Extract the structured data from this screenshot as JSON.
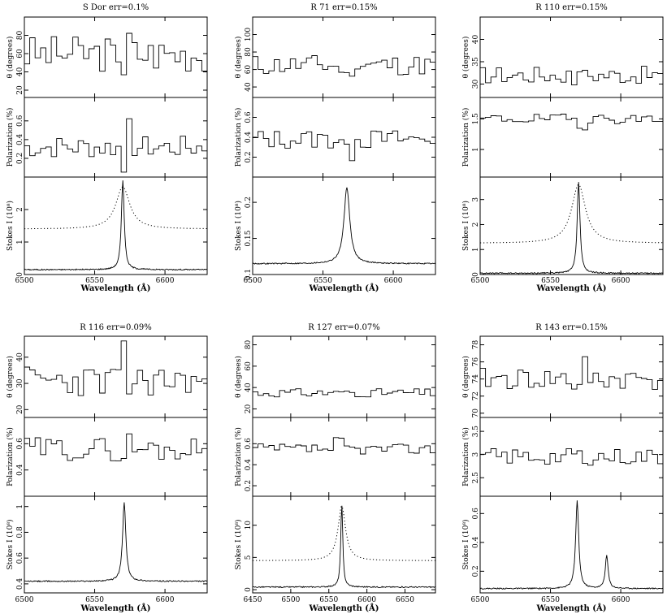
{
  "chart_data": [
    {
      "type": "line",
      "title": "S Dor err=0.1%",
      "xlabel": "Wavelength (Å)",
      "xlim": [
        6500,
        6630
      ],
      "xticks": [
        6500,
        6550,
        6600
      ],
      "line_center": 6570,
      "panels": [
        {
          "kind": "theta",
          "ylabel": "θ (degrees)",
          "ylim": [
            12,
            100
          ],
          "yticks": [
            20,
            40,
            60,
            80
          ],
          "style": "step",
          "base": 60,
          "amp": 20,
          "seed": 3
        },
        {
          "kind": "pol",
          "ylabel": "Polarization (%)",
          "ylim": [
            0.0,
            0.85
          ],
          "yticks": [
            0.2,
            0.4,
            0.6
          ],
          "style": "step",
          "base": 0.32,
          "amp": 0.12,
          "seed": 7
        },
        {
          "kind": "stokes",
          "ylabel": "Stokes I (10⁸)",
          "ylim": [
            0,
            3
          ],
          "yticks": [
            0,
            1,
            2
          ],
          "style": "line",
          "base": 0.15,
          "peak": 2.9,
          "width": 1.2,
          "dotted": true,
          "dot_base": 1.4,
          "dot_peak": 2.7,
          "dot_width": 6
        }
      ]
    },
    {
      "type": "line",
      "title": "R 71 err=0.15%",
      "xlabel": "Wavelength (Å)",
      "xlim": [
        6500,
        6630
      ],
      "xticks": [
        6500,
        6550,
        6600
      ],
      "line_center": 6567,
      "panels": [
        {
          "kind": "theta",
          "ylabel": "θ (degrees)",
          "ylim": [
            28,
            120
          ],
          "yticks": [
            40,
            60,
            80,
            100
          ],
          "style": "step",
          "base": 65,
          "amp": 12,
          "seed": 11
        },
        {
          "kind": "pol",
          "ylabel": "Polarization (%)",
          "ylim": [
            0.0,
            0.8
          ],
          "yticks": [
            0.2,
            0.4,
            0.6
          ],
          "style": "step",
          "base": 0.38,
          "amp": 0.1,
          "seed": 13
        },
        {
          "kind": "stokes",
          "ylabel": "Stokes I (10⁸)",
          "ylim": [
            0.1,
            0.235
          ],
          "yticks": [
            0.1,
            0.15,
            0.2
          ],
          "style": "line",
          "base": 0.115,
          "peak": 0.22,
          "width": 2.5,
          "dotted": false
        }
      ]
    },
    {
      "type": "line",
      "title": "R 110 err=0.15%",
      "xlabel": "Wavelength (Å)",
      "xlim": [
        6500,
        6630
      ],
      "xticks": [
        6500,
        6550,
        6600
      ],
      "line_center": 6570,
      "panels": [
        {
          "kind": "theta",
          "ylabel": "θ (degrees)",
          "ylim": [
            27,
            45
          ],
          "yticks": [
            30,
            35,
            40
          ],
          "style": "step",
          "base": 32,
          "amp": 2,
          "seed": 17
        },
        {
          "kind": "pol",
          "ylabel": "Polarization (%)",
          "ylim": [
            0.55,
            1.85
          ],
          "yticks": [
            1,
            1.5
          ],
          "style": "step",
          "base": 1.5,
          "amp": 0.08,
          "seed": 19
        },
        {
          "kind": "stokes",
          "ylabel": "Stokes I (10⁸)",
          "ylim": [
            0,
            3.9
          ],
          "yticks": [
            0,
            1,
            2,
            3
          ],
          "style": "line",
          "base": 0.05,
          "peak": 3.7,
          "width": 1.2,
          "dotted": true,
          "dot_base": 1.25,
          "dot_peak": 3.6,
          "dot_width": 6
        }
      ]
    },
    {
      "type": "line",
      "title": "R 116 err=0.09%",
      "xlabel": "Wavelength (Å)",
      "xlim": [
        6500,
        6630
      ],
      "xticks": [
        6500,
        6550,
        6600
      ],
      "line_center": 6571,
      "panels": [
        {
          "kind": "theta",
          "ylabel": "θ (degrees)",
          "ylim": [
            17,
            48
          ],
          "yticks": [
            20,
            30,
            40
          ],
          "style": "step",
          "base": 31,
          "amp": 6,
          "seed": 23
        },
        {
          "kind": "pol",
          "ylabel": "Polarization (%)",
          "ylim": [
            0.2,
            0.8
          ],
          "yticks": [
            0.4,
            0.6
          ],
          "style": "step",
          "base": 0.56,
          "amp": 0.09,
          "seed": 29
        },
        {
          "kind": "stokes",
          "ylabel": "Stokes I (10⁸)",
          "ylim": [
            0.33,
            1.08
          ],
          "yticks": [
            0.4,
            0.6,
            0.8,
            1
          ],
          "style": "line",
          "base": 0.42,
          "peak": 1.03,
          "width": 1.4,
          "dotted": false
        }
      ]
    },
    {
      "type": "line",
      "title": "R 127 err=0.07%",
      "xlabel": "Wavelength (Å)",
      "xlim": [
        6450,
        6690
      ],
      "xticks": [
        6450,
        6500,
        6550,
        6600,
        6650
      ],
      "line_center": 6567,
      "panels": [
        {
          "kind": "theta",
          "ylabel": "θ (degrees)",
          "ylim": [
            12,
            88
          ],
          "yticks": [
            20,
            40,
            60,
            80
          ],
          "style": "step",
          "base": 35,
          "amp": 4,
          "seed": 31
        },
        {
          "kind": "pol",
          "ylabel": "Polarization (%)",
          "ylim": [
            0.1,
            0.85
          ],
          "yticks": [
            0.2,
            0.4,
            0.6
          ],
          "style": "step",
          "base": 0.55,
          "amp": 0.05,
          "seed": 37
        },
        {
          "kind": "stokes",
          "ylabel": "Stokes I (10⁸)",
          "ylim": [
            -0.5,
            14.5
          ],
          "yticks": [
            0,
            5,
            10
          ],
          "style": "line",
          "base": 0.4,
          "peak": 13.2,
          "width": 1.6,
          "dotted": true,
          "dot_base": 4.5,
          "dot_peak": 13,
          "dot_width": 6
        }
      ]
    },
    {
      "type": "line",
      "title": "R 143 err=0.15%",
      "xlabel": "Wavelength (Å)",
      "xlim": [
        6500,
        6630
      ],
      "xticks": [
        6500,
        6550,
        6600
      ],
      "line_center": 6569,
      "panels": [
        {
          "kind": "theta",
          "ylabel": "θ (degrees)",
          "ylim": [
            69.5,
            79
          ],
          "yticks": [
            70,
            72,
            74,
            76,
            78
          ],
          "style": "step",
          "base": 74,
          "amp": 1.3,
          "seed": 41
        },
        {
          "kind": "pol",
          "ylabel": "Polarization (%)",
          "ylim": [
            2.1,
            3.8
          ],
          "yticks": [
            2.5,
            3,
            3.5
          ],
          "style": "step",
          "base": 2.95,
          "amp": 0.18,
          "seed": 43
        },
        {
          "kind": "stokes",
          "ylabel": "Stokes I (10⁸)",
          "ylim": [
            0.05,
            0.72
          ],
          "yticks": [
            0.2,
            0.4,
            0.6
          ],
          "style": "line",
          "base": 0.08,
          "peak": 0.69,
          "width": 1.3,
          "dotted": false,
          "extra_peaks": [
            [
              6555,
              0.08,
              1.5
            ],
            [
              6590,
              0.31,
              1.2
            ]
          ]
        }
      ]
    }
  ]
}
